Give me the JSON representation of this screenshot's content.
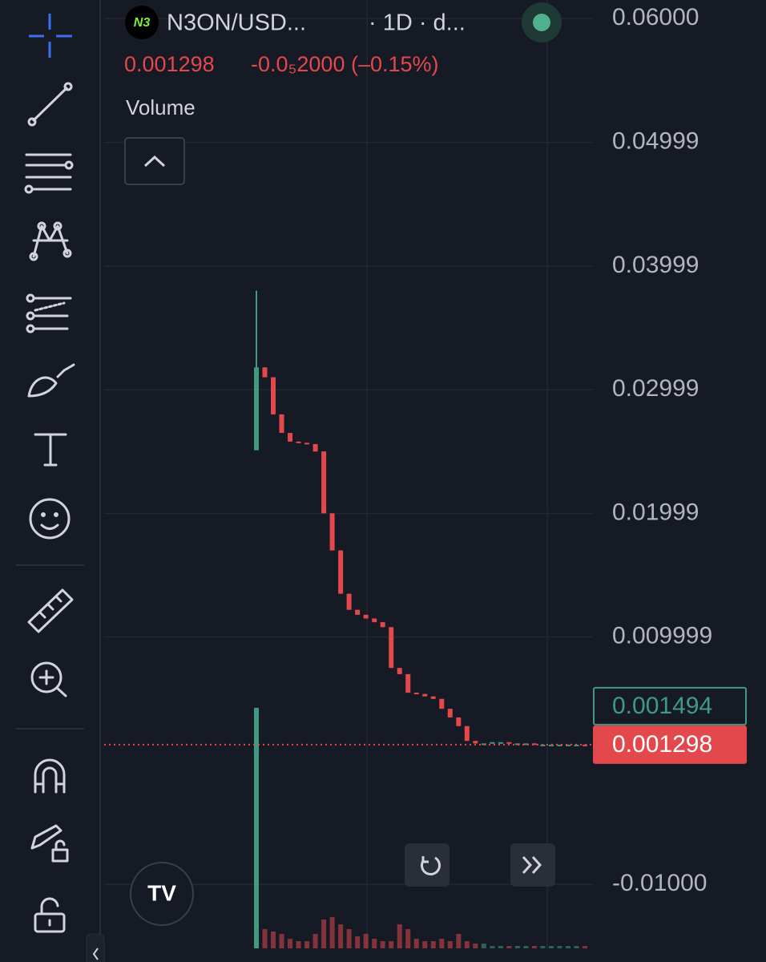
{
  "header": {
    "symbol": "N3ON/USD...",
    "interval": "· 1D · d...",
    "price": "0.001298",
    "change": "-0.0₅2000 (–0.15%)",
    "indicator": "Volume"
  },
  "chart_data": {
    "type": "candlestick",
    "ylim": [
      -0.0153,
      0.0615
    ],
    "yticks": [
      {
        "value": 0.06,
        "label": "0.06000"
      },
      0.04999,
      0.03999,
      0.02999,
      0.01999,
      0.009999,
      {
        "value": -0.01,
        "label": "-0.01000"
      }
    ],
    "open": [
      0.0251,
      0.0318,
      0.031,
      0.028,
      0.0265,
      0.0258,
      0.0257,
      0.0256,
      0.025,
      0.02,
      0.017,
      0.0135,
      0.0122,
      0.0118,
      0.0115,
      0.0112,
      0.0108,
      0.0075,
      0.007,
      0.0055,
      0.0054,
      0.0052,
      0.005,
      0.0042,
      0.0035,
      0.0028,
      0.0016,
      0.0014,
      0.0014,
      0.0015,
      0.0015,
      0.0014,
      0.0014,
      0.0014,
      0.0013,
      0.0013,
      0.0013,
      0.0013,
      0.0013,
      0.0013
    ],
    "high": [
      0.038,
      0.0318,
      0.031,
      0.028,
      0.0265,
      0.0258,
      0.0257,
      0.0256,
      0.025,
      0.02,
      0.017,
      0.0135,
      0.0122,
      0.0118,
      0.0115,
      0.0112,
      0.0108,
      0.0075,
      0.007,
      0.0055,
      0.0054,
      0.0052,
      0.005,
      0.0042,
      0.0035,
      0.0028,
      0.0016,
      0.0014,
      0.0015,
      0.0015,
      0.0015,
      0.0014,
      0.0014,
      0.0014,
      0.0013,
      0.0013,
      0.0013,
      0.0013,
      0.0013,
      0.0013
    ],
    "low": [
      0.0251,
      0.031,
      0.028,
      0.0265,
      0.0258,
      0.0257,
      0.0256,
      0.025,
      0.02,
      0.017,
      0.0135,
      0.0122,
      0.0118,
      0.0115,
      0.0112,
      0.0108,
      0.0075,
      0.007,
      0.0055,
      0.0054,
      0.0052,
      0.005,
      0.0042,
      0.0035,
      0.0028,
      0.0016,
      0.0014,
      0.0014,
      0.0014,
      0.0015,
      0.0014,
      0.0014,
      0.0014,
      0.0013,
      0.0013,
      0.0013,
      0.0013,
      0.0013,
      0.0013,
      0.001298
    ],
    "close": [
      0.0318,
      0.031,
      0.028,
      0.0265,
      0.0258,
      0.0257,
      0.0256,
      0.025,
      0.02,
      0.017,
      0.0135,
      0.0122,
      0.0118,
      0.0115,
      0.0112,
      0.0108,
      0.0075,
      0.007,
      0.0055,
      0.0054,
      0.0052,
      0.005,
      0.0042,
      0.0035,
      0.0028,
      0.0016,
      0.0014,
      0.0014,
      0.0015,
      0.0015,
      0.0014,
      0.0014,
      0.0014,
      0.0013,
      0.0013,
      0.0013,
      0.0013,
      0.0013,
      0.0013,
      0.001298
    ],
    "volume": [
      100,
      8,
      7,
      6,
      4,
      3,
      3,
      6,
      12,
      13,
      10,
      8,
      5,
      6,
      4,
      3,
      3,
      10,
      8,
      4,
      3,
      3,
      4,
      3,
      6,
      3,
      2,
      2,
      1,
      1,
      1,
      1,
      1,
      1,
      1,
      1,
      1,
      1,
      1,
      1
    ],
    "up_color": "#3f9b7f",
    "down_color": "#e2484c",
    "price_labels": [
      {
        "value": 0.001494,
        "label": "0.001494"
      },
      {
        "value": 0.001298,
        "label": "0.001298"
      }
    ]
  }
}
